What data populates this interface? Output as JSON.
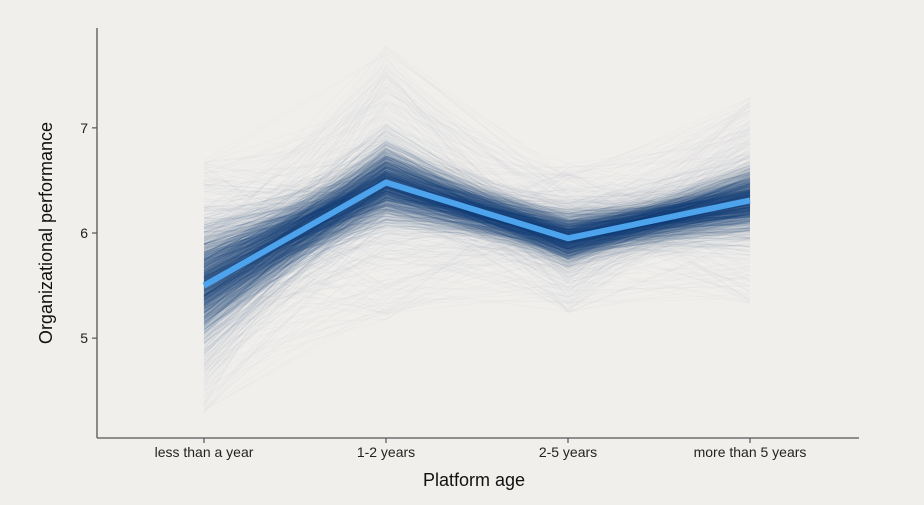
{
  "chart_data": {
    "type": "line",
    "title": "",
    "xlabel": "Platform age",
    "ylabel": "Organizational performance",
    "categories": [
      "less than a year",
      "1-2 years",
      "2-5 years",
      "more than 5 years"
    ],
    "ylim": [
      4.05,
      7.95
    ],
    "yticks": [
      5,
      6,
      7
    ],
    "grid": false,
    "legend": "none",
    "series": [
      {
        "role": "mean",
        "values": [
          5.5,
          6.48,
          5.95,
          6.31
        ],
        "color": "#4da3ec"
      }
    ],
    "uncertainty_band": {
      "description_role": "posterior draws",
      "center": [
        5.5,
        6.48,
        5.95,
        6.31
      ],
      "inner_spread": [
        0.3,
        0.2,
        0.13,
        0.16
      ],
      "outer_spread": [
        0.62,
        0.42,
        0.3,
        0.36
      ],
      "max_spread": [
        1.22,
        1.32,
        0.72,
        0.98
      ],
      "color": "#1a4a7d",
      "faint_color": "#b9c3cd"
    }
  },
  "colors": {
    "background": "#f0efec",
    "axis": "#555555",
    "text": "#222222"
  }
}
